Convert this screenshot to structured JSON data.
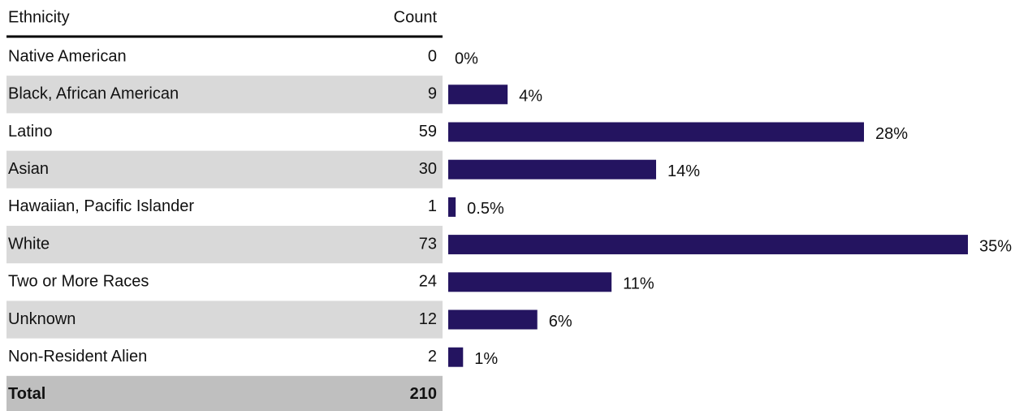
{
  "table": {
    "headers": [
      "Ethnicity",
      "Count"
    ],
    "rows": [
      [
        "Native American",
        0
      ],
      [
        "Black, African American",
        9
      ],
      [
        "Latino",
        59
      ],
      [
        "Asian",
        30
      ],
      [
        "Hawaiian,  Pacific Islander",
        1
      ],
      [
        "White",
        73
      ],
      [
        "Two or More Races",
        24
      ],
      [
        "Unknown",
        12
      ],
      [
        "Non-Resident Alien",
        2
      ]
    ],
    "total": [
      "Total",
      210
    ]
  },
  "chart_data": {
    "type": "bar",
    "orientation": "horizontal",
    "color": "#241460",
    "values": [
      0,
      4,
      28,
      14,
      0.5,
      35,
      11,
      6,
      1
    ],
    "value_labels": [
      "0%",
      "4%",
      "28%",
      "14%",
      "0.5%",
      "35%",
      "11%",
      "6%",
      "1%"
    ]
  }
}
